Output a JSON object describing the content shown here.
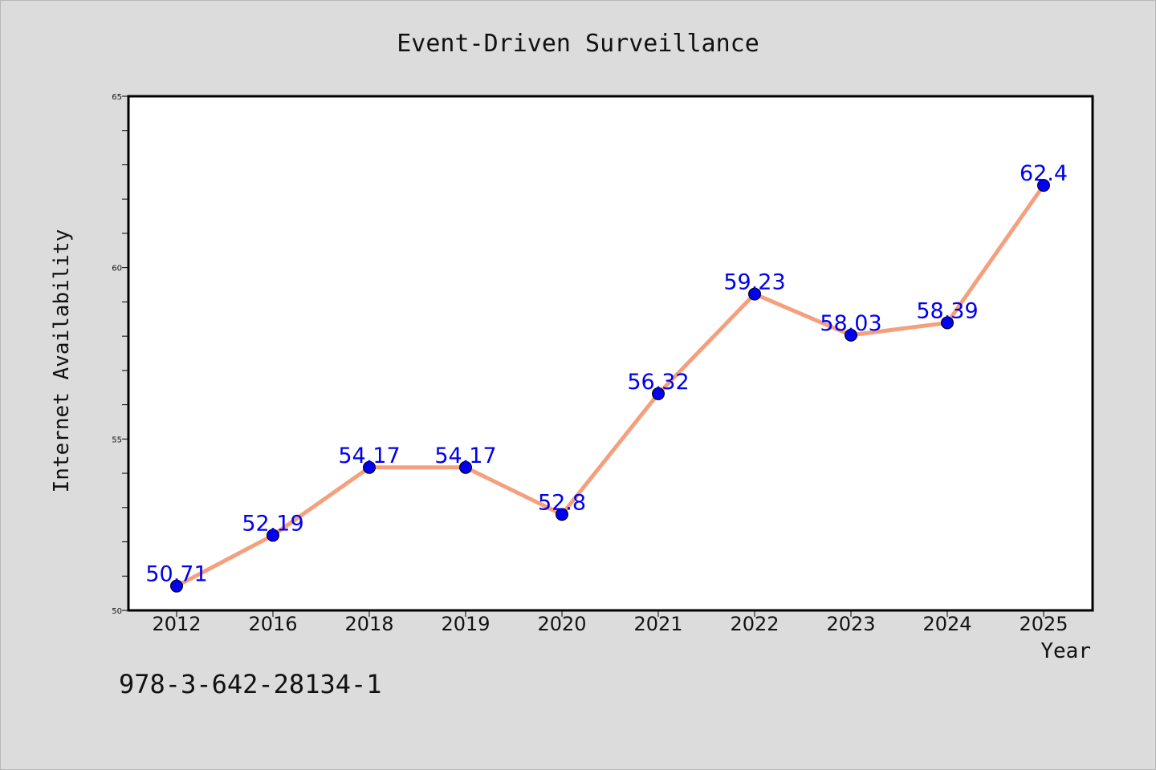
{
  "chart_data": {
    "type": "line",
    "title": "Event-Driven Surveillance",
    "xlabel": "Year",
    "ylabel": "Internet Availability",
    "categories": [
      "2012",
      "2016",
      "2018",
      "2019",
      "2020",
      "2021",
      "2022",
      "2023",
      "2024",
      "2025"
    ],
    "series": [
      {
        "values": [
          50.71,
          52.19,
          54.17,
          54.17,
          52.8,
          56.32,
          59.23,
          58.03,
          58.39,
          62.4
        ],
        "data_labels": [
          "50.71",
          "52.19",
          "54.17",
          "54.17",
          "52.8",
          "56.32",
          "59.23",
          "58.03",
          "58.39",
          "62.4"
        ],
        "color": "#f4a07e",
        "marker_color": "#0000ee"
      }
    ],
    "ylim": [
      50,
      65
    ],
    "yticks": [
      "50",
      "55",
      "60",
      "65"
    ],
    "grid": false,
    "legend": "none"
  },
  "footer_text": "978-3-642-28134-1",
  "colors": {
    "background": "#dcdcdc",
    "plot_background": "#ffffff",
    "data_label": "#0000ee"
  }
}
